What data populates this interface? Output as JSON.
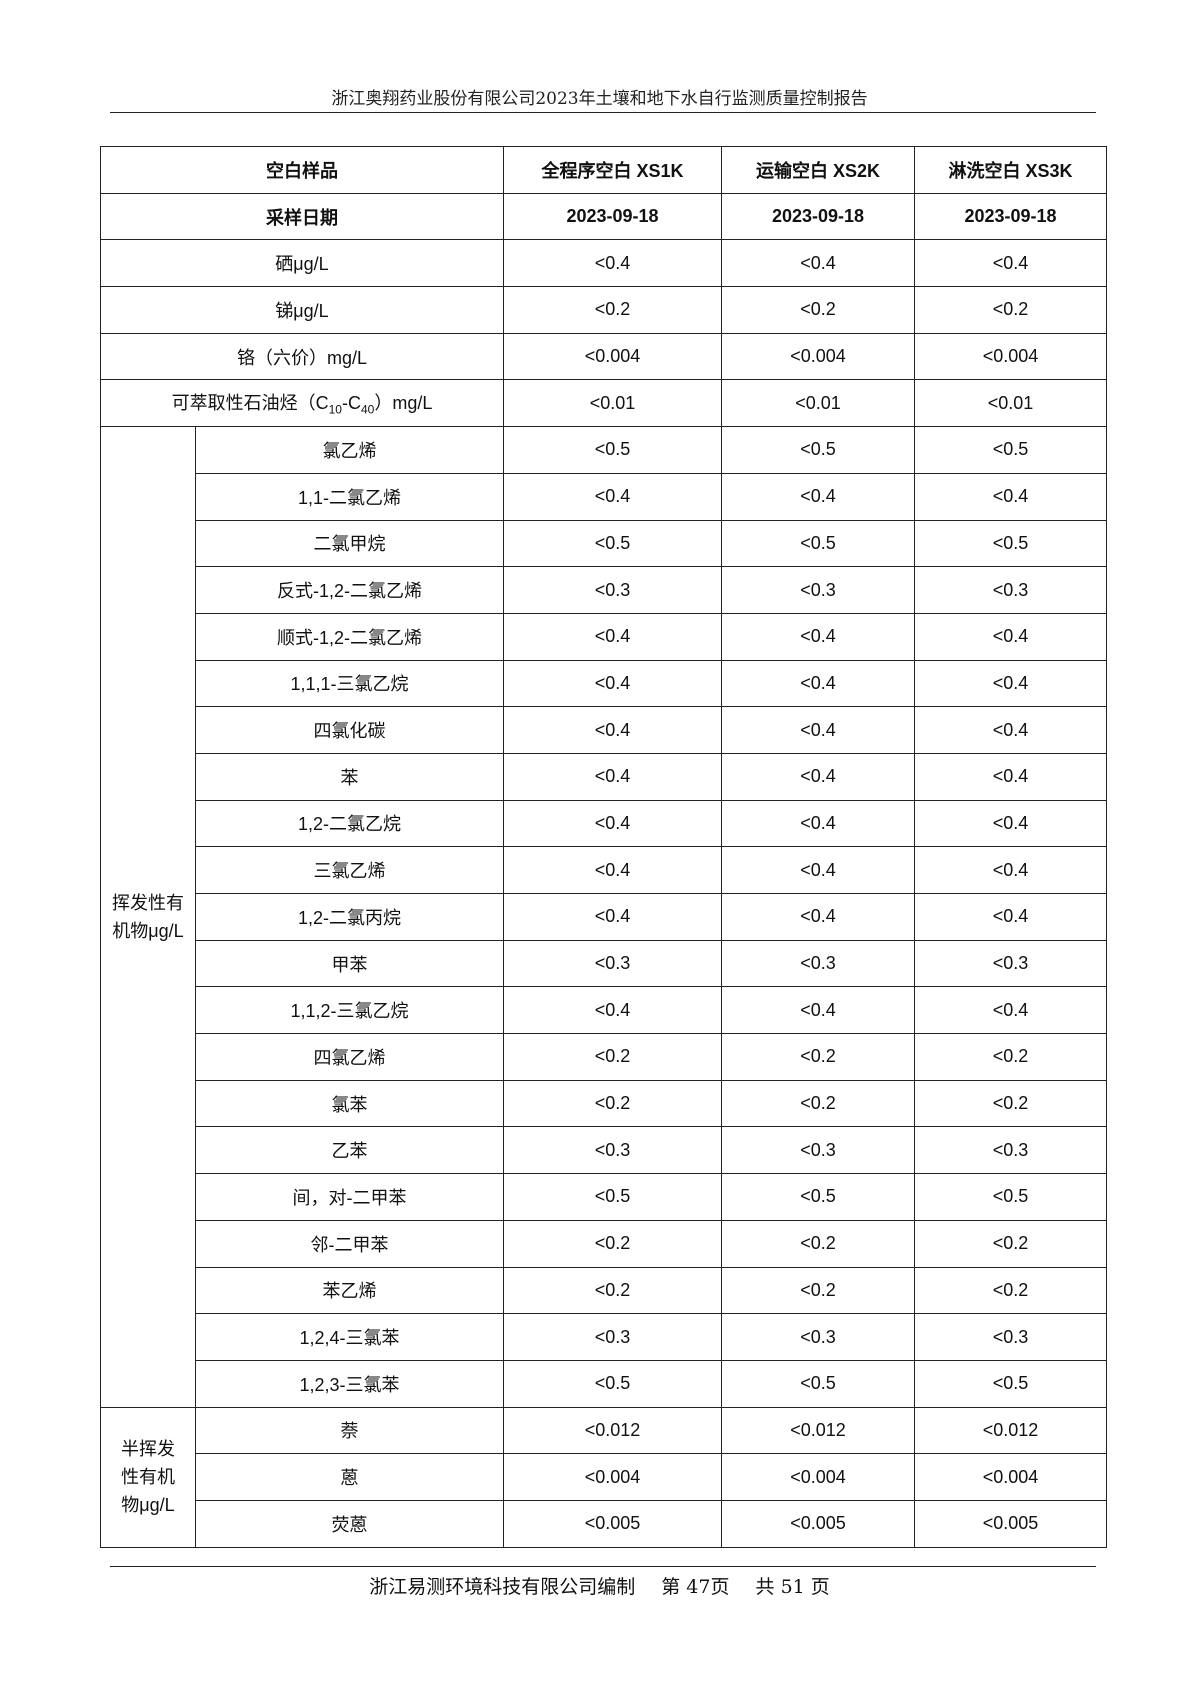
{
  "header": {
    "title": "浙江奥翔药业股份有限公司2023年土壤和地下水自行监测质量控制报告"
  },
  "table": {
    "columns": [
      "空白样品",
      "全程序空白 XS1K",
      "运输空白 XS2K",
      "淋洗空白 XS3K"
    ],
    "date_row": {
      "label": "采样日期",
      "values": [
        "2023-09-18",
        "2023-09-18",
        "2023-09-18"
      ]
    },
    "simple_rows": [
      {
        "label": "硒μg/L",
        "values": [
          "<0.4",
          "<0.4",
          "<0.4"
        ]
      },
      {
        "label": "锑μg/L",
        "values": [
          "<0.2",
          "<0.2",
          "<0.2"
        ]
      },
      {
        "label": "铬（六价）mg/L",
        "values": [
          "<0.004",
          "<0.004",
          "<0.004"
        ]
      }
    ],
    "tph_row": {
      "label_pre": "可萃取性石油烃（C",
      "sub1": "10",
      "mid": "-C",
      "sub2": "40",
      "label_post": "）mg/L",
      "values": [
        "<0.01",
        "<0.01",
        "<0.01"
      ]
    },
    "groups": [
      {
        "label": "挥发性有机物μg/L",
        "rows": [
          {
            "label": "氯乙烯",
            "values": [
              "<0.5",
              "<0.5",
              "<0.5"
            ]
          },
          {
            "label": "1,1-二氯乙烯",
            "values": [
              "<0.4",
              "<0.4",
              "<0.4"
            ]
          },
          {
            "label": "二氯甲烷",
            "values": [
              "<0.5",
              "<0.5",
              "<0.5"
            ]
          },
          {
            "label": "反式-1,2-二氯乙烯",
            "values": [
              "<0.3",
              "<0.3",
              "<0.3"
            ]
          },
          {
            "label": "顺式-1,2-二氯乙烯",
            "values": [
              "<0.4",
              "<0.4",
              "<0.4"
            ]
          },
          {
            "label": "1,1,1-三氯乙烷",
            "values": [
              "<0.4",
              "<0.4",
              "<0.4"
            ]
          },
          {
            "label": "四氯化碳",
            "values": [
              "<0.4",
              "<0.4",
              "<0.4"
            ]
          },
          {
            "label": "苯",
            "values": [
              "<0.4",
              "<0.4",
              "<0.4"
            ]
          },
          {
            "label": "1,2-二氯乙烷",
            "values": [
              "<0.4",
              "<0.4",
              "<0.4"
            ]
          },
          {
            "label": "三氯乙烯",
            "values": [
              "<0.4",
              "<0.4",
              "<0.4"
            ]
          },
          {
            "label": "1,2-二氯丙烷",
            "values": [
              "<0.4",
              "<0.4",
              "<0.4"
            ]
          },
          {
            "label": "甲苯",
            "values": [
              "<0.3",
              "<0.3",
              "<0.3"
            ]
          },
          {
            "label": "1,1,2-三氯乙烷",
            "values": [
              "<0.4",
              "<0.4",
              "<0.4"
            ]
          },
          {
            "label": "四氯乙烯",
            "values": [
              "<0.2",
              "<0.2",
              "<0.2"
            ]
          },
          {
            "label": "氯苯",
            "values": [
              "<0.2",
              "<0.2",
              "<0.2"
            ]
          },
          {
            "label": "乙苯",
            "values": [
              "<0.3",
              "<0.3",
              "<0.3"
            ]
          },
          {
            "label": "间，对-二甲苯",
            "values": [
              "<0.5",
              "<0.5",
              "<0.5"
            ]
          },
          {
            "label": "邻-二甲苯",
            "values": [
              "<0.2",
              "<0.2",
              "<0.2"
            ]
          },
          {
            "label": "苯乙烯",
            "values": [
              "<0.2",
              "<0.2",
              "<0.2"
            ]
          },
          {
            "label": "1,2,4-三氯苯",
            "values": [
              "<0.3",
              "<0.3",
              "<0.3"
            ]
          },
          {
            "label": "1,2,3-三氯苯",
            "values": [
              "<0.5",
              "<0.5",
              "<0.5"
            ]
          }
        ]
      },
      {
        "label": "半挥发性有机物μg/L",
        "rows": [
          {
            "label": "萘",
            "values": [
              "<0.012",
              "<0.012",
              "<0.012"
            ]
          },
          {
            "label": "蒽",
            "values": [
              "<0.004",
              "<0.004",
              "<0.004"
            ]
          },
          {
            "label": "荧蒽",
            "values": [
              "<0.005",
              "<0.005",
              "<0.005"
            ]
          }
        ]
      }
    ]
  },
  "footer": {
    "company": "浙江易测环境科技有限公司编制",
    "page": "第 47页",
    "total": "共 51 页"
  }
}
